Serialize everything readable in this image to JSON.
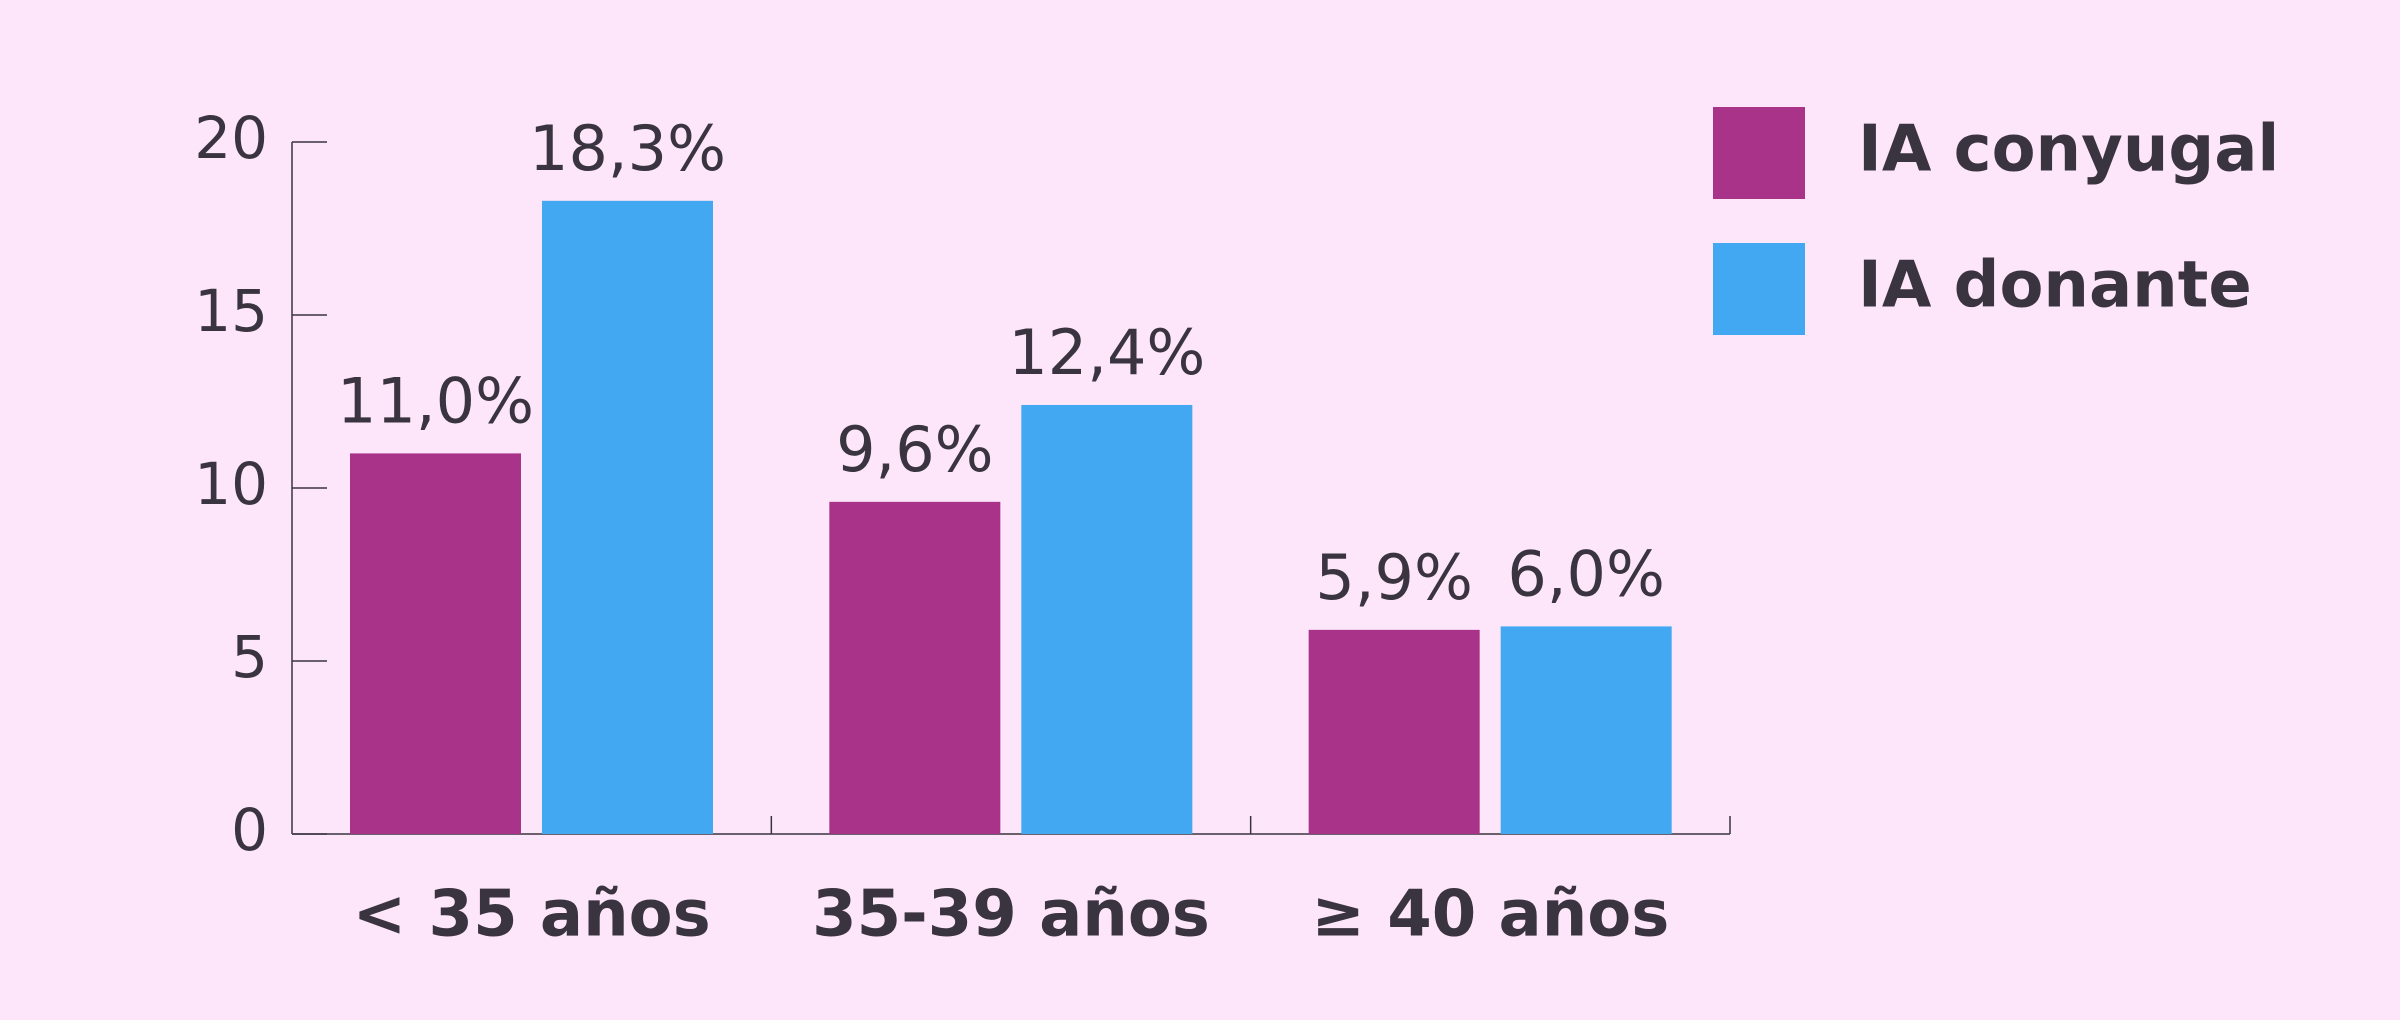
{
  "chart_data": {
    "type": "bar",
    "categories": [
      "< 35 años",
      "35-39 años",
      "≥ 40 años"
    ],
    "series": [
      {
        "name": "IA conyugal",
        "color": "#a83388",
        "values": [
          11.0,
          9.6,
          5.9
        ],
        "value_labels": [
          "11,0%",
          "9,6%",
          "5,9%"
        ]
      },
      {
        "name": "IA donante",
        "color": "#42a8f2",
        "values": [
          18.3,
          12.4,
          6.0
        ],
        "value_labels": [
          "18,3%",
          "12,4%",
          "6,0%"
        ]
      }
    ],
    "ylim": [
      0,
      20
    ],
    "yticks": [
      0,
      5,
      10,
      15,
      20
    ],
    "grid": false,
    "legend": "top-right"
  }
}
